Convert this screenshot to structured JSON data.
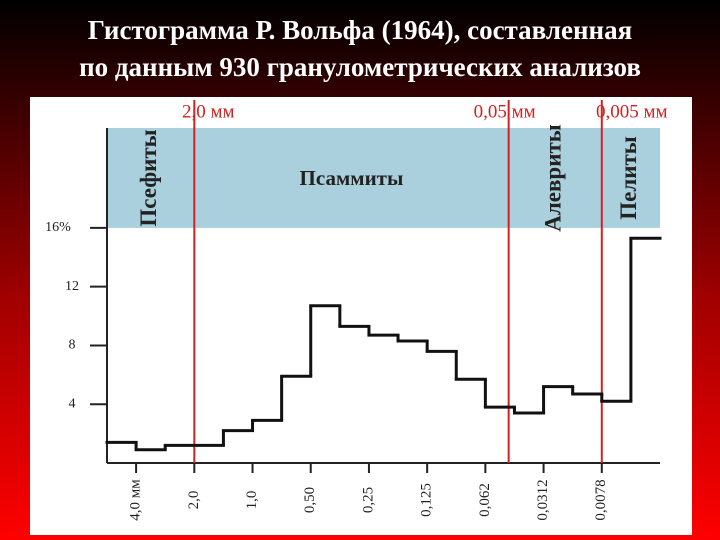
{
  "title_lines": [
    "Гистограмма Р. Вольфа (1964), составленная",
    "по данным 930 гранулометрических анализов"
  ],
  "chart_data": {
    "type": "histogram",
    "bins": [
      -0.5,
      0,
      0.5,
      1.5,
      2,
      2.5,
      3,
      3.5,
      4,
      4.5,
      5,
      5.5,
      6,
      6.5,
      7,
      7.5,
      8,
      8.5,
      9
    ],
    "values": [
      1.4,
      0.9,
      1.2,
      2.2,
      2.9,
      5.9,
      10.7,
      9.3,
      8.7,
      8.3,
      7.6,
      5.7,
      3.8,
      3.4,
      5.2,
      4.7,
      4.2,
      15.3
    ],
    "color": "#111111",
    "xlim": [
      -0.5,
      9
    ],
    "ylim": [
      0,
      22.8
    ],
    "xticks": [
      {
        "value": 0,
        "label": "4,0 мм"
      },
      {
        "value": 1,
        "label": "2,0"
      },
      {
        "value": 2,
        "label": "1,0"
      },
      {
        "value": 3,
        "label": "0,50"
      },
      {
        "value": 4,
        "label": "0,25"
      },
      {
        "value": 5,
        "label": "0,125"
      },
      {
        "value": 6,
        "label": "0,062"
      },
      {
        "value": 7,
        "label": "0,0312"
      },
      {
        "value": 8,
        "label": "0,0078"
      }
    ],
    "yticks": [
      4,
      8,
      12,
      {
        "value": 16,
        "label": "16%"
      }
    ],
    "boundaries": [
      {
        "value": 1,
        "label": "2,0 мм"
      },
      {
        "value": 6.4,
        "label": "0,05 мм"
      },
      {
        "value": 8,
        "label": "0,005 мм"
      }
    ],
    "boundary_color": "#d42020",
    "band_color": "#a9d0dc",
    "zones": [
      {
        "label": "Псефиты",
        "vertical": true
      },
      {
        "label": "Псаммиты",
        "vertical": false
      },
      {
        "label": "Алевриты",
        "vertical": true
      },
      {
        "label": "Пелиты",
        "vertical": true
      }
    ]
  }
}
